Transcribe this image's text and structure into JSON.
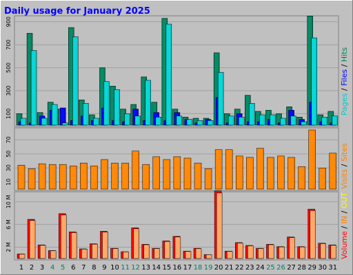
{
  "title": "Daily usage for January 2025",
  "colors": {
    "background": "#C0C0C0",
    "title": "#0000FF",
    "pages": "#00CCCC",
    "files": "#0000FF",
    "hits": "#00805C",
    "visits": "#FF8000",
    "sites": "#FF8000",
    "kbin": "#FF8000",
    "kbout": "#FFFF00",
    "volume": "#FF0000",
    "weekend_label": "#00805C"
  },
  "legends": {
    "top": [
      {
        "text": "Pages",
        "color": "#00CCCC"
      },
      {
        "text": " / ",
        "color": "#000000"
      },
      {
        "text": "Files",
        "color": "#0000FF"
      },
      {
        "text": " / ",
        "color": "#000000"
      },
      {
        "text": "Hits",
        "color": "#00805C"
      }
    ],
    "mid": [
      {
        "text": "Visits",
        "color": "#FF8000"
      },
      {
        "text": " / ",
        "color": "#000000"
      },
      {
        "text": "Sites",
        "color": "#FF8000"
      }
    ],
    "bot": [
      {
        "text": "Volume",
        "color": "#FF0000"
      },
      {
        "text": " / ",
        "color": "#000000"
      },
      {
        "text": "IN",
        "color": "#FF8000"
      },
      {
        "text": " / ",
        "color": "#000000"
      },
      {
        "text": "OUT",
        "color": "#FFFF00"
      }
    ]
  },
  "chart_data": [
    {
      "type": "bar",
      "name": "Hits / Files / Pages",
      "x": [
        1,
        2,
        3,
        4,
        5,
        6,
        7,
        8,
        9,
        10,
        11,
        12,
        13,
        14,
        15,
        16,
        17,
        18,
        19,
        20,
        21,
        22,
        23,
        24,
        25,
        26,
        27,
        28,
        29,
        30,
        31
      ],
      "weekend": [
        4,
        5,
        11,
        12,
        18,
        19,
        25,
        26
      ],
      "yticks": [
        "100",
        "300",
        "500",
        "700",
        "900"
      ],
      "tick_values": [
        100,
        300,
        500,
        700,
        900
      ],
      "ylim": [
        0,
        940
      ],
      "series": [
        {
          "name": "Hits",
          "values": [
            100,
            800,
            110,
            200,
            140,
            850,
            220,
            90,
            500,
            340,
            140,
            180,
            420,
            200,
            930,
            140,
            70,
            60,
            60,
            630,
            100,
            140,
            260,
            120,
            130,
            100,
            160,
            70,
            950,
            90,
            120
          ]
        },
        {
          "name": "Files",
          "values": [
            30,
            20,
            80,
            130,
            150,
            40,
            80,
            40,
            150,
            40,
            30,
            140,
            40,
            110,
            40,
            110,
            50,
            20,
            50,
            240,
            20,
            100,
            30,
            30,
            50,
            20,
            130,
            50,
            200,
            30,
            20
          ]
        },
        {
          "name": "Pages",
          "values": [
            60,
            650,
            60,
            180,
            20,
            770,
            190,
            60,
            380,
            310,
            100,
            80,
            390,
            70,
            880,
            80,
            50,
            40,
            40,
            460,
            80,
            70,
            190,
            90,
            90,
            60,
            80,
            30,
            760,
            70,
            80
          ]
        }
      ]
    },
    {
      "type": "bar",
      "name": "Visits / Sites",
      "x": [
        1,
        2,
        3,
        4,
        5,
        6,
        7,
        8,
        9,
        10,
        11,
        12,
        13,
        14,
        15,
        16,
        17,
        18,
        19,
        20,
        21,
        22,
        23,
        24,
        25,
        26,
        27,
        28,
        29,
        30,
        31
      ],
      "yticks": [
        "10",
        "30",
        "50",
        "70"
      ],
      "tick_values": [
        10,
        30,
        50,
        70
      ],
      "ylim": [
        0,
        85
      ],
      "series": [
        {
          "name": "Visits",
          "values": [
            34,
            29,
            36,
            35,
            35,
            33,
            37,
            33,
            42,
            37,
            37,
            54,
            35,
            46,
            42,
            46,
            44,
            37,
            29,
            56,
            56,
            47,
            45,
            58,
            45,
            47,
            45,
            32,
            84,
            30,
            51
          ]
        }
      ]
    },
    {
      "type": "bar",
      "name": "Volume",
      "x": [
        1,
        2,
        3,
        4,
        5,
        6,
        7,
        8,
        9,
        10,
        11,
        12,
        13,
        14,
        15,
        16,
        17,
        18,
        19,
        20,
        21,
        22,
        23,
        24,
        25,
        26,
        27,
        28,
        29,
        30,
        31
      ],
      "yticks": [
        "2 M",
        "6 M",
        "10 M"
      ],
      "tick_values": [
        2,
        6,
        10
      ],
      "ylim": [
        0,
        11.5
      ],
      "series": [
        {
          "name": "Volume",
          "values": [
            0.8,
            6.9,
            2.4,
            1.4,
            7.9,
            4.7,
            1.7,
            2.6,
            4.8,
            1.8,
            1.2,
            5.4,
            2.5,
            1.8,
            3.1,
            3.9,
            1.3,
            1.8,
            0.7,
            11.9,
            1.3,
            2.8,
            2.3,
            1.8,
            2.5,
            2.1,
            3.8,
            2.1,
            8.7,
            2.7,
            2.4
          ]
        }
      ]
    }
  ]
}
